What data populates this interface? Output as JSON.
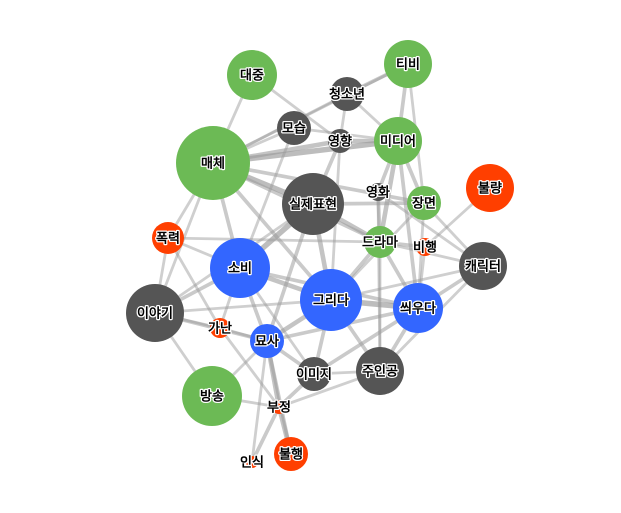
{
  "graph": {
    "colors": {
      "green": "#6cba55",
      "dark": "#555555",
      "blue": "#3366ff",
      "red": "#ff3f00",
      "edge": "#9a9a9a"
    },
    "nodes": [
      {
        "id": "daejung",
        "label": "대중",
        "group": "green"
      },
      {
        "id": "tibi",
        "label": "티비",
        "group": "green"
      },
      {
        "id": "cheongsonyeon",
        "label": "청소년",
        "group": "dark"
      },
      {
        "id": "moseup",
        "label": "모습",
        "group": "dark"
      },
      {
        "id": "yeonghyang",
        "label": "영향",
        "group": "dark"
      },
      {
        "id": "midieo",
        "label": "미디어",
        "group": "green"
      },
      {
        "id": "maeche",
        "label": "매체",
        "group": "green"
      },
      {
        "id": "bullyang",
        "label": "불량",
        "group": "red"
      },
      {
        "id": "yeonghwa",
        "label": "영화",
        "group": "dark"
      },
      {
        "id": "silje",
        "label": "실제표현",
        "group": "dark"
      },
      {
        "id": "jangmyeon",
        "label": "장면",
        "group": "green"
      },
      {
        "id": "pokryeok",
        "label": "폭력",
        "group": "red"
      },
      {
        "id": "deurama",
        "label": "드라마",
        "group": "green"
      },
      {
        "id": "bihaeng",
        "label": "비행",
        "group": "red"
      },
      {
        "id": "sobi",
        "label": "소비",
        "group": "blue"
      },
      {
        "id": "kaerikteo",
        "label": "캐릭터",
        "group": "dark"
      },
      {
        "id": "geurida",
        "label": "그리다",
        "group": "blue"
      },
      {
        "id": "iyagi",
        "label": "이야기",
        "group": "dark"
      },
      {
        "id": "ssiuda",
        "label": "씌우다",
        "group": "blue"
      },
      {
        "id": "ganan",
        "label": "가난",
        "group": "red"
      },
      {
        "id": "myosa",
        "label": "묘사",
        "group": "blue"
      },
      {
        "id": "imiji",
        "label": "이미지",
        "group": "dark"
      },
      {
        "id": "juingong",
        "label": "주인공",
        "group": "dark"
      },
      {
        "id": "bangsong",
        "label": "방송",
        "group": "green"
      },
      {
        "id": "bujeong",
        "label": "부정",
        "group": "red"
      },
      {
        "id": "bulhaeng",
        "label": "불행",
        "group": "red"
      },
      {
        "id": "insik",
        "label": "인식",
        "group": "red"
      }
    ],
    "edges": [
      {
        "source": "daejung",
        "target": "maeche",
        "weight": 2
      },
      {
        "source": "daejung",
        "target": "yeonghyang",
        "weight": 2
      },
      {
        "source": "tibi",
        "target": "cheongsonyeon",
        "weight": 3
      },
      {
        "source": "tibi",
        "target": "midieo",
        "weight": 3
      },
      {
        "source": "tibi",
        "target": "maeche",
        "weight": 2
      },
      {
        "source": "tibi",
        "target": "jangmyeon",
        "weight": 2
      },
      {
        "source": "cheongsonyeon",
        "target": "yeonghyang",
        "weight": 2
      },
      {
        "source": "cheongsonyeon",
        "target": "maeche",
        "weight": 2
      },
      {
        "source": "cheongsonyeon",
        "target": "midieo",
        "weight": 2
      },
      {
        "source": "moseup",
        "target": "maeche",
        "weight": 2
      },
      {
        "source": "moseup",
        "target": "midieo",
        "weight": 2
      },
      {
        "source": "moseup",
        "target": "sobi",
        "weight": 2
      },
      {
        "source": "yeonghyang",
        "target": "maeche",
        "weight": 4
      },
      {
        "source": "yeonghyang",
        "target": "midieo",
        "weight": 4
      },
      {
        "source": "yeonghyang",
        "target": "silje",
        "weight": 3
      },
      {
        "source": "yeonghyang",
        "target": "geurida",
        "weight": 2
      },
      {
        "source": "midieo",
        "target": "maeche",
        "weight": 5
      },
      {
        "source": "midieo",
        "target": "deurama",
        "weight": 4
      },
      {
        "source": "midieo",
        "target": "jangmyeon",
        "weight": 3
      },
      {
        "source": "midieo",
        "target": "yeonghwa",
        "weight": 3
      },
      {
        "source": "midieo",
        "target": "ssiuda",
        "weight": 3
      },
      {
        "source": "maeche",
        "target": "silje",
        "weight": 5
      },
      {
        "source": "maeche",
        "target": "pokryeok",
        "weight": 2
      },
      {
        "source": "maeche",
        "target": "sobi",
        "weight": 3
      },
      {
        "source": "maeche",
        "target": "geurida",
        "weight": 3
      },
      {
        "source": "maeche",
        "target": "iyagi",
        "weight": 2
      },
      {
        "source": "maeche",
        "target": "jangmyeon",
        "weight": 3
      },
      {
        "source": "maeche",
        "target": "deurama",
        "weight": 3
      },
      {
        "source": "bullyang",
        "target": "bihaeng",
        "weight": 2
      },
      {
        "source": "yeonghwa",
        "target": "deurama",
        "weight": 3
      },
      {
        "source": "yeonghwa",
        "target": "juingong",
        "weight": 2
      },
      {
        "source": "yeonghwa",
        "target": "kaerikteo",
        "weight": 2
      },
      {
        "source": "silje",
        "target": "sobi",
        "weight": 5
      },
      {
        "source": "silje",
        "target": "geurida",
        "weight": 4
      },
      {
        "source": "silje",
        "target": "deurama",
        "weight": 4
      },
      {
        "source": "silje",
        "target": "jangmyeon",
        "weight": 3
      },
      {
        "source": "silje",
        "target": "myosa",
        "weight": 3
      },
      {
        "source": "silje",
        "target": "iyagi",
        "weight": 2
      },
      {
        "source": "jangmyeon",
        "target": "kaerikteo",
        "weight": 2
      },
      {
        "source": "jangmyeon",
        "target": "ssiuda",
        "weight": 2
      },
      {
        "source": "jangmyeon",
        "target": "geurida",
        "weight": 2
      },
      {
        "source": "pokryeok",
        "target": "sobi",
        "weight": 2
      },
      {
        "source": "pokryeok",
        "target": "iyagi",
        "weight": 2
      },
      {
        "source": "pokryeok",
        "target": "deurama",
        "weight": 2
      },
      {
        "source": "pokryeok",
        "target": "ganan",
        "weight": 2
      },
      {
        "source": "deurama",
        "target": "bihaeng",
        "weight": 3
      },
      {
        "source": "deurama",
        "target": "ssiuda",
        "weight": 3
      },
      {
        "source": "deurama",
        "target": "geurida",
        "weight": 3
      },
      {
        "source": "deurama",
        "target": "kaerikteo",
        "weight": 2
      },
      {
        "source": "deurama",
        "target": "juingong",
        "weight": 2
      },
      {
        "source": "bihaeng",
        "target": "ssiuda",
        "weight": 2
      },
      {
        "source": "sobi",
        "target": "geurida",
        "weight": 4
      },
      {
        "source": "sobi",
        "target": "ssiuda",
        "weight": 3
      },
      {
        "source": "sobi",
        "target": "iyagi",
        "weight": 3
      },
      {
        "source": "sobi",
        "target": "myosa",
        "weight": 3
      },
      {
        "source": "sobi",
        "target": "ganan",
        "weight": 2
      },
      {
        "source": "sobi",
        "target": "imiji",
        "weight": 2
      },
      {
        "source": "kaerikteo",
        "target": "ssiuda",
        "weight": 3
      },
      {
        "source": "kaerikteo",
        "target": "geurida",
        "weight": 2
      },
      {
        "source": "kaerikteo",
        "target": "juingong",
        "weight": 2
      },
      {
        "source": "geurida",
        "target": "ssiuda",
        "weight": 5
      },
      {
        "source": "geurida",
        "target": "myosa",
        "weight": 4
      },
      {
        "source": "geurida",
        "target": "juingong",
        "weight": 3
      },
      {
        "source": "geurida",
        "target": "imiji",
        "weight": 3
      },
      {
        "source": "geurida",
        "target": "iyagi",
        "weight": 2
      },
      {
        "source": "iyagi",
        "target": "ganan",
        "weight": 2
      },
      {
        "source": "iyagi",
        "target": "myosa",
        "weight": 3
      },
      {
        "source": "iyagi",
        "target": "bangsong",
        "weight": 2
      },
      {
        "source": "ssiuda",
        "target": "myosa",
        "weight": 3
      },
      {
        "source": "ssiuda",
        "target": "imiji",
        "weight": 3
      },
      {
        "source": "ssiuda",
        "target": "juingong",
        "weight": 3
      },
      {
        "source": "ganan",
        "target": "myosa",
        "weight": 2
      },
      {
        "source": "myosa",
        "target": "imiji",
        "weight": 3
      },
      {
        "source": "myosa",
        "target": "bujeong",
        "weight": 4
      },
      {
        "source": "myosa",
        "target": "bulhaeng",
        "weight": 3
      },
      {
        "source": "myosa",
        "target": "bangsong",
        "weight": 2
      },
      {
        "source": "myosa",
        "target": "insik",
        "weight": 2
      },
      {
        "source": "imiji",
        "target": "bujeong",
        "weight": 3
      },
      {
        "source": "imiji",
        "target": "juingong",
        "weight": 2
      },
      {
        "source": "juingong",
        "target": "bujeong",
        "weight": 2
      },
      {
        "source": "bujeong",
        "target": "bulhaeng",
        "weight": 4
      },
      {
        "source": "bujeong",
        "target": "insik",
        "weight": 3
      },
      {
        "source": "bangsong",
        "target": "bujeong",
        "weight": 2
      },
      {
        "source": "ganan",
        "target": "bujeong",
        "weight": 2
      }
    ]
  }
}
